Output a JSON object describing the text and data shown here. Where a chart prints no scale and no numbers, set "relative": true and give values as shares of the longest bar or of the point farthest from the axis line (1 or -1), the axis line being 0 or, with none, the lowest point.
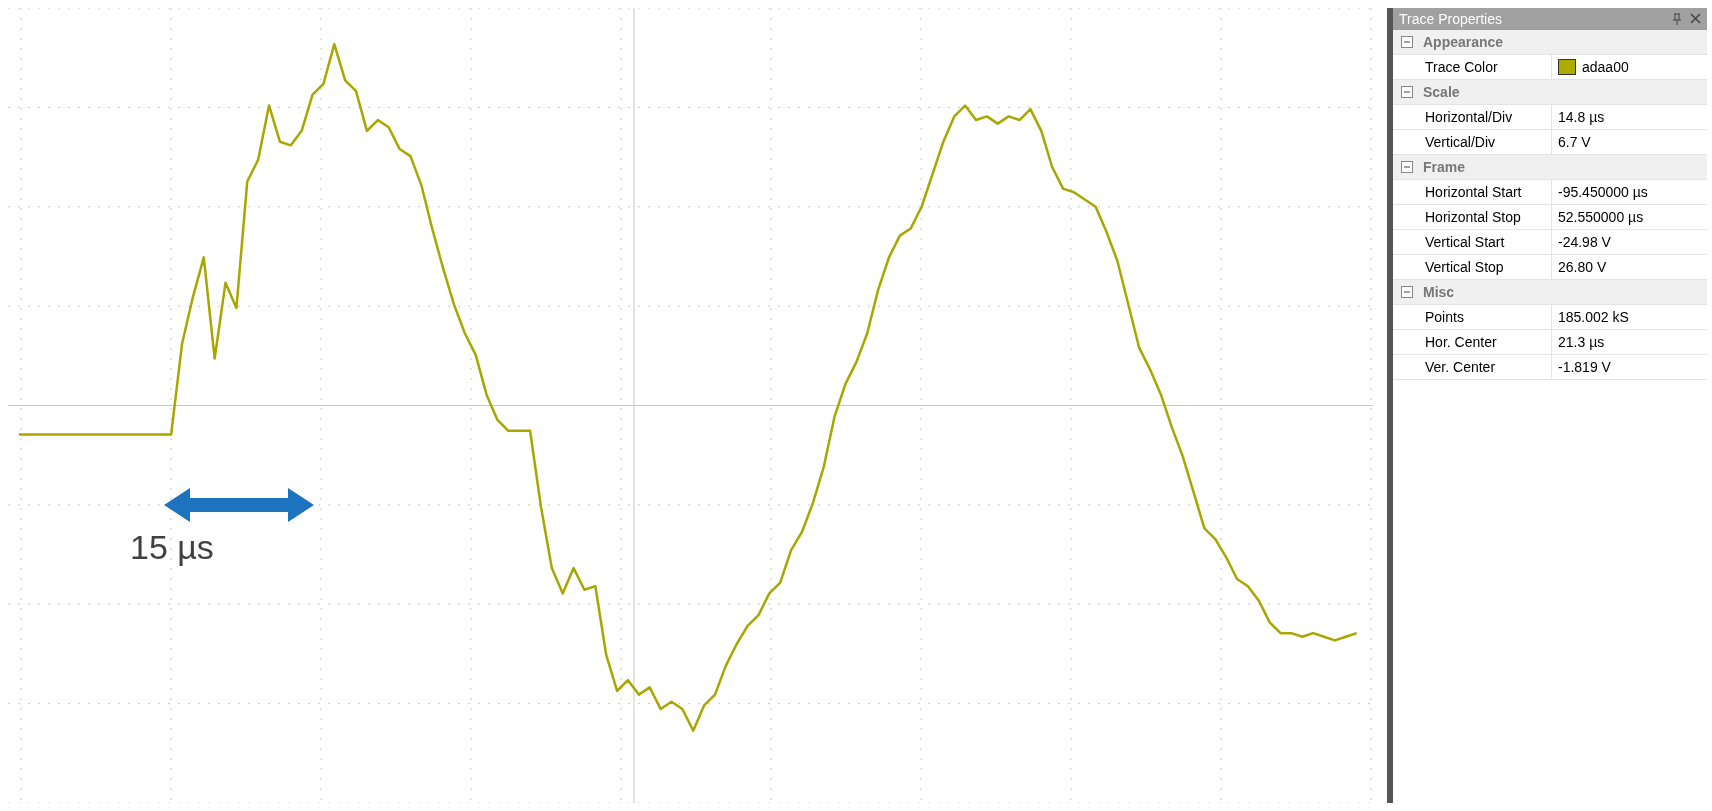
{
  "chart_data": [
    {
      "type": "line",
      "relative": true,
      "grid": true,
      "color": "#a9a600",
      "annotations": [
        "15 µs"
      ],
      "categories": [
        null,
        null,
        null,
        null,
        null,
        null,
        null,
        null,
        null,
        null,
        null,
        null,
        null,
        null,
        null,
        null,
        null,
        null,
        null,
        null,
        null,
        null,
        null,
        null,
        null,
        null,
        null,
        null,
        null,
        null,
        null,
        null,
        null,
        null,
        null,
        null,
        null,
        null,
        null,
        null,
        null,
        null,
        null,
        null,
        null,
        null,
        null,
        null,
        null,
        null,
        null,
        null,
        null,
        null,
        null,
        null,
        null,
        null,
        null,
        null,
        null,
        null,
        null,
        null,
        null,
        null,
        null,
        null,
        null,
        null,
        null,
        null,
        null,
        null,
        null,
        null,
        null,
        null,
        null,
        null,
        null,
        null,
        null,
        null,
        null,
        null,
        null,
        null,
        null,
        null,
        null,
        null,
        null,
        null,
        null,
        null,
        null,
        null,
        null,
        null,
        null,
        null,
        null,
        null,
        null,
        null,
        null,
        null,
        null,
        null,
        null,
        null,
        null,
        null,
        null,
        null,
        null,
        null,
        null,
        null,
        null,
        null,
        null,
        null
      ],
      "values": [
        -0.08,
        -0.08,
        -0.08,
        -0.08,
        -0.08,
        -0.08,
        -0.08,
        -0.08,
        -0.08,
        -0.08,
        -0.08,
        -0.08,
        -0.08,
        -0.08,
        -0.08,
        0.17,
        0.3,
        0.41,
        0.13,
        0.34,
        0.27,
        0.62,
        0.68,
        0.83,
        0.73,
        0.72,
        0.76,
        0.86,
        0.89,
        1.0,
        0.9,
        0.87,
        0.76,
        0.79,
        0.77,
        0.71,
        0.69,
        0.61,
        0.49,
        0.38,
        0.28,
        0.2,
        0.14,
        0.03,
        -0.04,
        -0.07,
        -0.07,
        -0.07,
        -0.28,
        -0.45,
        -0.52,
        -0.45,
        -0.51,
        -0.5,
        -0.69,
        -0.79,
        -0.76,
        -0.8,
        -0.78,
        -0.84,
        -0.82,
        -0.84,
        -0.9,
        -0.83,
        -0.8,
        -0.72,
        -0.66,
        -0.61,
        -0.58,
        -0.52,
        -0.49,
        -0.4,
        -0.35,
        -0.27,
        -0.17,
        -0.03,
        0.06,
        0.12,
        0.2,
        0.32,
        0.41,
        0.47,
        0.49,
        0.55,
        0.64,
        0.73,
        0.8,
        0.83,
        0.79,
        0.8,
        0.78,
        0.8,
        0.79,
        0.82,
        0.76,
        0.66,
        0.6,
        0.59,
        0.57,
        0.55,
        0.48,
        0.4,
        0.28,
        0.16,
        0.1,
        0.03,
        -0.06,
        -0.14,
        -0.24,
        -0.34,
        -0.37,
        -0.42,
        -0.48,
        -0.5,
        -0.54,
        -0.6,
        -0.63,
        -0.63,
        -0.64,
        -0.63,
        -0.64,
        -0.65,
        -0.64,
        -0.63
      ]
    },
    {
      "type": "other",
      "title": "Trace Properties",
      "color": "#adaa00",
      "categories": [
        "Appearance",
        "Trace Color",
        "Scale",
        "Horizontal/Div",
        "Vertical/Div",
        "Frame",
        "Horizontal Start",
        "Horizontal Stop",
        "Vertical Start",
        "Vertical Stop",
        "Misc",
        "Points",
        "Hor. Center",
        "Ver. Center"
      ],
      "value_labels": [
        null,
        "adaa00",
        null,
        "14.8 µs",
        "6.7 V",
        null,
        "-95.450000 µs",
        "52.550000 µs",
        "-24.98 V",
        "26.80 V",
        null,
        "185.002 kS",
        "21.3 µs",
        "-1.819 V"
      ]
    }
  ]
}
